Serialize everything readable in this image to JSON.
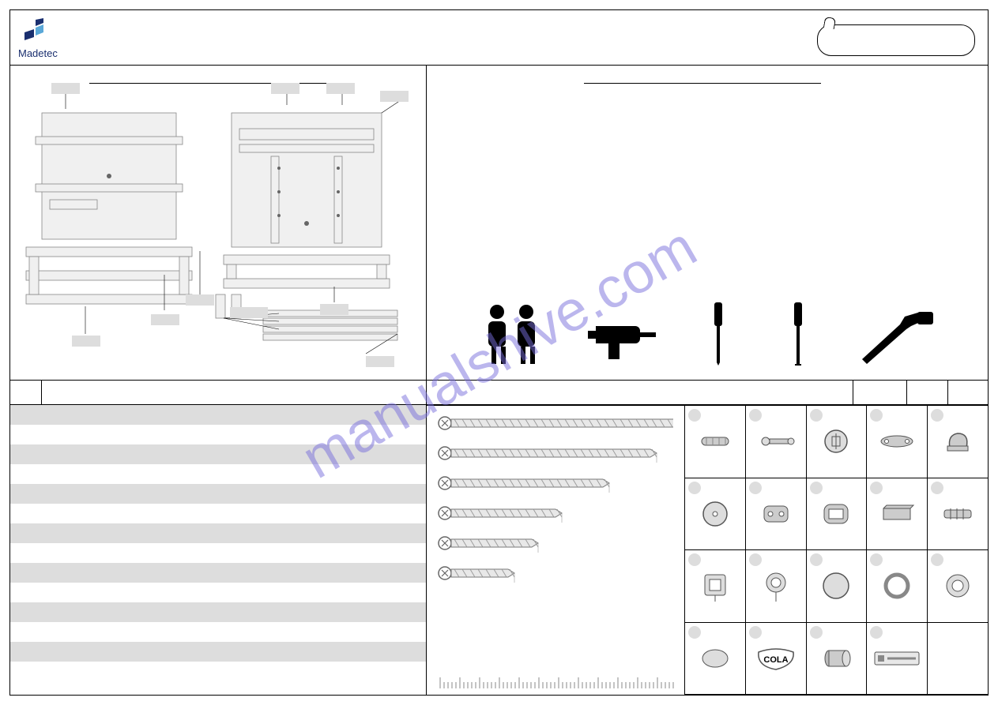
{
  "brand": "Madetec",
  "watermark": "manualshive.com",
  "colors": {
    "brand_dark": "#1a2f6f",
    "brand_light": "#5aa8d8",
    "watermark": "rgba(120,110,220,0.5)",
    "zebra": "#dddddd",
    "line": "#000000"
  },
  "table_header_widths": [
    40,
    310,
    68,
    52,
    50
  ],
  "screws": [
    {
      "length": 320,
      "label": ""
    },
    {
      "length": 260,
      "label": ""
    },
    {
      "length": 200,
      "label": ""
    },
    {
      "length": 140,
      "label": ""
    },
    {
      "length": 110,
      "label": ""
    },
    {
      "length": 80,
      "label": ""
    }
  ],
  "hardware_cells": [
    {
      "type": "dowel"
    },
    {
      "type": "cam-bolt"
    },
    {
      "type": "cam-lock"
    },
    {
      "type": "bracket-flat"
    },
    {
      "type": "clip"
    },
    {
      "type": "disc"
    },
    {
      "type": "fitting-a"
    },
    {
      "type": "fitting-b"
    },
    {
      "type": "channel"
    },
    {
      "type": "anchor"
    },
    {
      "type": "led-square"
    },
    {
      "type": "led-round"
    },
    {
      "type": "cap-big"
    },
    {
      "type": "ring"
    },
    {
      "type": "grommet"
    },
    {
      "type": "ellipse"
    },
    {
      "type": "cola",
      "text": "COLA"
    },
    {
      "type": "cylinder"
    },
    {
      "type": "brand-plate"
    },
    {
      "type": "empty"
    }
  ],
  "tools": [
    "two-people",
    "drill",
    "screwdriver-phillips",
    "screwdriver-flat",
    "hammer"
  ],
  "zebra_rows": 14
}
